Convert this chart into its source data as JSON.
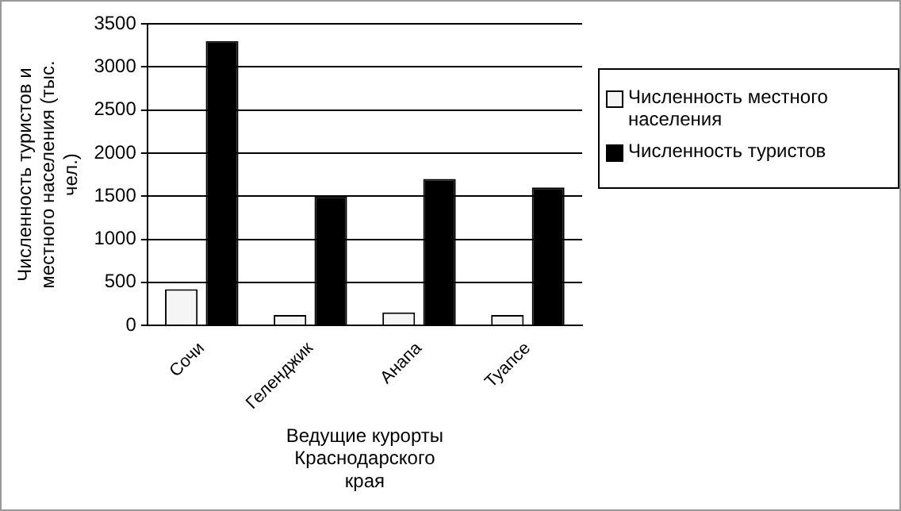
{
  "chart_data": {
    "type": "bar",
    "xlabel": "Ведущие курорты Краснодарского края",
    "ylabel": "Численность туристов и местного населения (тыс. чел.)",
    "categories": [
      "Сочи",
      "Геленджик",
      "Анапа",
      "Туапсе"
    ],
    "series": [
      {
        "name": "Численность местного населения",
        "color": "#f5f5f5",
        "values": [
          420,
          120,
          150,
          120
        ]
      },
      {
        "name": "Численность туристов",
        "color": "#000000",
        "values": [
          3300,
          1500,
          1700,
          1600
        ]
      }
    ],
    "ylim": [
      0,
      3500
    ],
    "yticks": [
      0,
      500,
      1000,
      1500,
      2000,
      2500,
      3000,
      3500
    ],
    "grid": "y",
    "legend": "right"
  }
}
